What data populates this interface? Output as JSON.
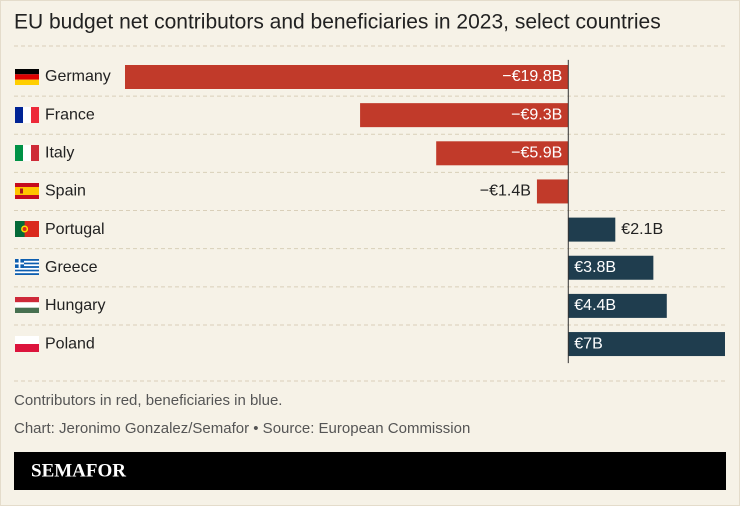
{
  "chart_data": {
    "type": "bar",
    "title": "EU budget net contributors and beneficiaries in 2023, select countries",
    "categories": [
      "Germany",
      "France",
      "Italy",
      "Spain",
      "Portugal",
      "Greece",
      "Hungary",
      "Poland"
    ],
    "values": [
      -19.8,
      -9.3,
      -5.9,
      -1.4,
      2.1,
      3.8,
      4.4,
      7
    ],
    "value_labels": [
      "−€19.8B",
      "−€9.3B",
      "−€5.9B",
      "−€1.4B",
      "€2.1B",
      "€3.8B",
      "€4.4B",
      "€7B"
    ],
    "colors": [
      "#c13a2a",
      "#c13a2a",
      "#c13a2a",
      "#c13a2a",
      "#1f3d4e",
      "#1f3d4e",
      "#1f3d4e",
      "#1f3d4e"
    ],
    "notes": [
      "Contributors in red, beneficiaries in blue.",
      "Chart: Jeronimo Gonzalez/Semafor • Source: European Commission"
    ],
    "brand": "SEMAFOR"
  }
}
